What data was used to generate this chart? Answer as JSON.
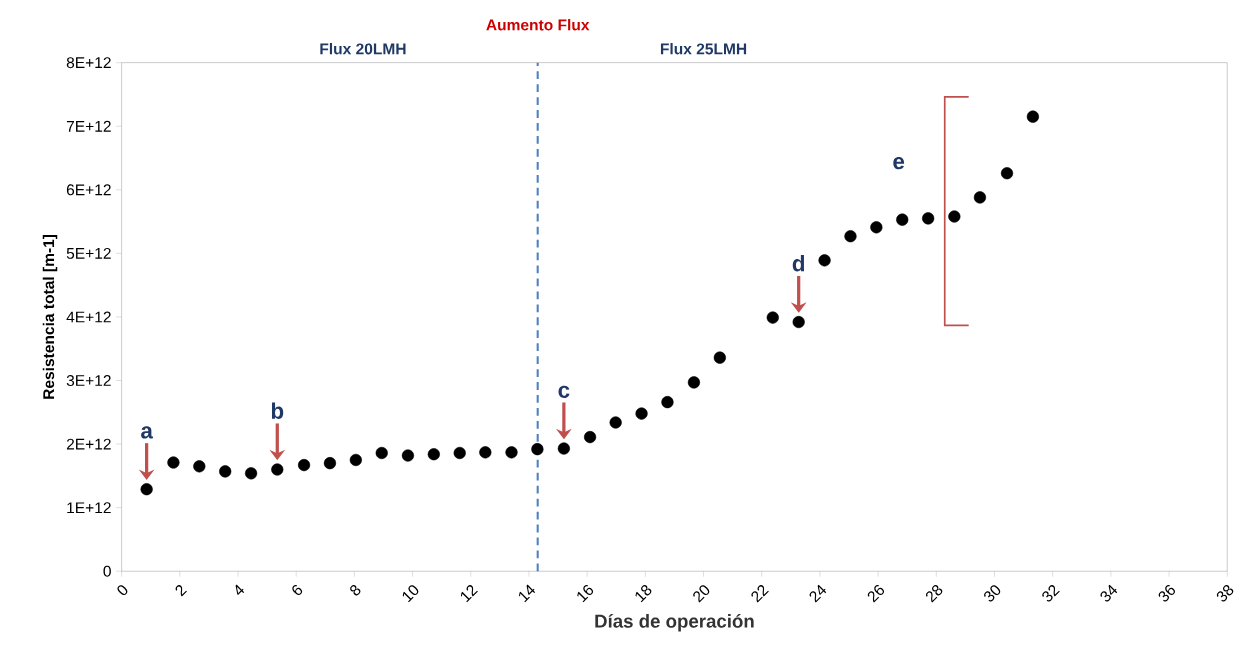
{
  "chart_data": {
    "type": "scatter",
    "xlabel": "Días de operación",
    "ylabel": "Resistencia total [m-1]",
    "x": [
      0.86,
      1.78,
      2.67,
      3.56,
      4.45,
      5.35,
      6.27,
      7.16,
      8.05,
      8.94,
      9.84,
      10.73,
      11.62,
      12.5,
      13.4,
      14.29,
      15.2,
      16.1,
      16.98,
      17.87,
      18.76,
      19.67,
      20.56,
      22.38,
      23.27,
      24.16,
      25.05,
      25.94,
      26.83,
      27.72,
      28.62,
      29.5,
      30.43,
      31.32
    ],
    "values": [
      1290000000000.0,
      1710000000000.0,
      1650000000000.0,
      1570000000000.0,
      1540000000000.0,
      1600000000000.0,
      1670000000000.0,
      1700000000000.0,
      1750000000000.0,
      1860000000000.0,
      1820000000000.0,
      1840000000000.0,
      1860000000000.0,
      1870000000000.0,
      1870000000000.0,
      1920000000000.0,
      1930000000000.0,
      2110000000000.0,
      2340000000000.0,
      2480000000000.0,
      2660000000000.0,
      2970000000000.0,
      3360000000000.0,
      3990000000000.0,
      3920000000000.0,
      4890000000000.0,
      5270000000000.0,
      5410000000000.0,
      5530000000000.0,
      5550000000000.0,
      5580000000000.0,
      5880000000000.0,
      6260000000000.0,
      7150000000000.0
    ],
    "color": "#000000",
    "marker": "circle",
    "grid": false,
    "xlim": [
      0,
      38
    ],
    "xticks": [
      0,
      2,
      4,
      6,
      8,
      10,
      12,
      14,
      16,
      18,
      20,
      22,
      24,
      26,
      28,
      30,
      32,
      34,
      36,
      38
    ],
    "ylim": [
      0,
      8000000000000.0
    ],
    "yticks": [
      0,
      {
        "value": 1000000000000.0,
        "label": "1E+12"
      },
      {
        "value": 2000000000000.0,
        "label": "2E+12"
      },
      {
        "value": 3000000000000.0,
        "label": "3E+12"
      },
      {
        "value": 4000000000000.0,
        "label": "4E+12"
      },
      {
        "value": 5000000000000.0,
        "label": "5E+12"
      },
      {
        "value": 6000000000000.0,
        "label": "6E+12"
      },
      {
        "value": 7000000000000.0,
        "label": "7E+12"
      },
      {
        "value": 8000000000000.0,
        "label": "8E+12"
      }
    ],
    "ref_lines": [
      {
        "axis": "x",
        "value": 14.3,
        "label": "Aumento Flux",
        "color": "#4f81bd",
        "line_style": "dashed"
      }
    ],
    "annotations": [
      "Flux 20LMH",
      "Flux 25LMH",
      {
        "text": "a",
        "x": 0.86,
        "y": 1290000000000.0
      },
      {
        "text": "b",
        "x": 5.35,
        "y": 1600000000000.0
      },
      {
        "text": "c",
        "x": 15.2,
        "y": 1930000000000.0
      },
      {
        "text": "d",
        "x": 23.27,
        "y": 3920000000000.0
      },
      {
        "text": "e",
        "x": 27.72,
        "y": 5550000000000.0
      }
    ]
  }
}
